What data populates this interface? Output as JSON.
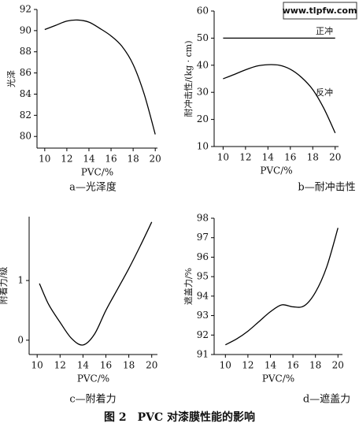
{
  "watermark": "www.tlpfw.com",
  "figure_caption": "图 2　PVC 对漆膜性能的影响",
  "chart_data": [
    {
      "type": "line",
      "caption": "a—光泽度",
      "x_label": "PVC/%",
      "y_label": "光泽",
      "x": [
        10,
        11,
        12,
        13,
        14,
        15,
        16,
        17,
        18,
        19,
        20
      ],
      "series": [
        {
          "name": null,
          "color": "#000000",
          "values": [
            90.1,
            90.5,
            90.9,
            91.0,
            90.8,
            90.2,
            89.5,
            88.5,
            86.8,
            84.0,
            80.2
          ]
        }
      ],
      "xlim": [
        9.3,
        20.2
      ],
      "ylim": [
        78.9,
        92
      ],
      "xticks": [
        10,
        12,
        14,
        16,
        18,
        20
      ],
      "yticks": [
        80,
        82,
        84,
        86,
        88,
        90,
        92
      ]
    },
    {
      "type": "line",
      "caption": "b—耐冲击性",
      "x_label": "PVC/%",
      "y_label": "耐冲击性/(kg · cm)",
      "x": [
        10,
        11,
        12,
        13,
        14,
        15,
        16,
        17,
        18,
        19,
        20
      ],
      "series": [
        {
          "name": "正冲",
          "color": "#000000",
          "values": [
            50,
            50,
            50,
            50,
            50,
            50,
            50,
            50,
            50,
            50,
            50
          ]
        },
        {
          "name": "反冲",
          "color": "#000000",
          "values": [
            35,
            36.6,
            38.3,
            39.7,
            40.2,
            40,
            38.5,
            35.5,
            31,
            24,
            15
          ]
        }
      ],
      "xlim": [
        9.2,
        20.3
      ],
      "ylim": [
        10,
        60
      ],
      "xticks": [
        10,
        12,
        14,
        16,
        18,
        20
      ],
      "yticks": [
        10,
        20,
        30,
        40,
        50,
        60
      ]
    },
    {
      "type": "line",
      "caption": "c—附着力",
      "x_label": "PVC/%",
      "y_label": "附着力/级",
      "x": [
        10.2,
        11,
        12,
        13,
        14,
        15,
        16,
        17,
        18,
        19,
        20
      ],
      "series": [
        {
          "name": null,
          "color": "#000000",
          "values": [
            0.95,
            0.6,
            0.3,
            0.03,
            -0.08,
            0.1,
            0.5,
            0.85,
            1.2,
            1.58,
            1.98
          ]
        }
      ],
      "xlim": [
        9.3,
        20.5
      ],
      "ylim": [
        -0.24,
        2.07
      ],
      "xticks": [
        10,
        12,
        14,
        16,
        18,
        20
      ],
      "yticks": [
        0,
        1
      ]
    },
    {
      "type": "line",
      "caption": "d—遮盖力",
      "x_label": "PVC/%",
      "y_label": "遮盖力/%",
      "x": [
        10,
        11,
        12,
        13,
        14,
        15,
        16,
        17,
        18,
        19,
        20
      ],
      "series": [
        {
          "name": null,
          "color": "#000000",
          "values": [
            91.5,
            91.8,
            92.2,
            92.7,
            93.2,
            93.55,
            93.45,
            93.5,
            94.2,
            95.5,
            97.5
          ]
        }
      ],
      "xlim": [
        9.0,
        20.4
      ],
      "ylim": [
        91,
        98
      ],
      "xticks": [
        10,
        12,
        14,
        16,
        18,
        20
      ],
      "yticks": [
        91,
        92,
        93,
        94,
        95,
        96,
        97,
        98
      ]
    }
  ]
}
